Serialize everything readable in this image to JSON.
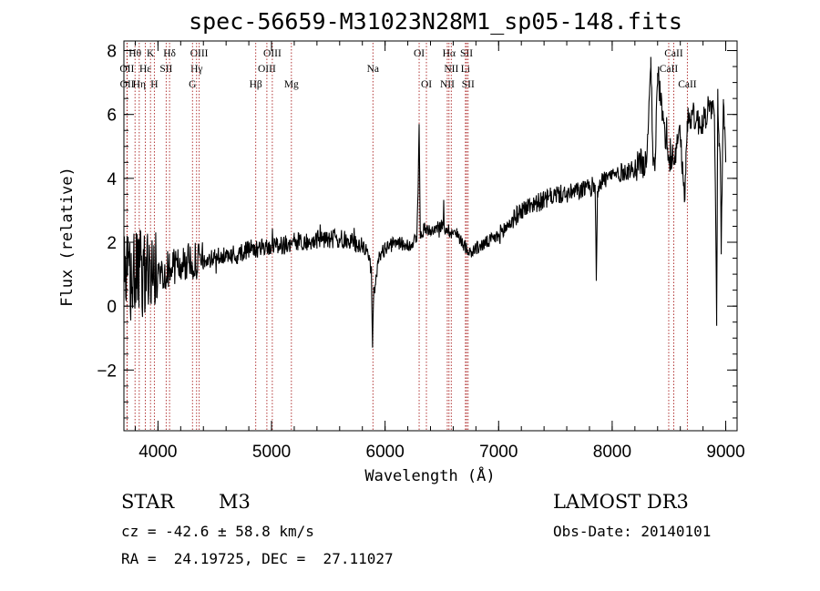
{
  "chart_data": {
    "type": "line",
    "title": "spec-56659-M31023N28M1_sp05-148.fits",
    "xlabel": "Wavelength (Å)",
    "ylabel": "Flux (relative)",
    "xlim": [
      3700,
      9100
    ],
    "ylim": [
      -3.9,
      8.3
    ],
    "x_ticks": [
      4000,
      5000,
      6000,
      7000,
      8000,
      9000
    ],
    "y_ticks": [
      -2,
      0,
      2,
      4,
      6,
      8
    ],
    "x_minor_step": 200,
    "y_minor_step": 0.5,
    "line_color": "#000000",
    "marker_color": "#aa2222",
    "x": [
      3700,
      3800,
      3900,
      4000,
      4100,
      4200,
      4300,
      4400,
      4500,
      4600,
      4700,
      4800,
      4900,
      5000,
      5100,
      5200,
      5300,
      5400,
      5500,
      5600,
      5700,
      5800,
      5860,
      5880,
      5890,
      5900,
      5910,
      5940,
      6000,
      6100,
      6200,
      6280,
      6290,
      6300,
      6310,
      6320,
      6340,
      6400,
      6450,
      6500,
      6550,
      6600,
      6650,
      6700,
      6750,
      6800,
      6900,
      7000,
      7100,
      7200,
      7300,
      7400,
      7500,
      7600,
      7700,
      7800,
      7850,
      7860,
      7870,
      7900,
      8000,
      8100,
      8200,
      8250,
      8300,
      8340,
      8360,
      8380,
      8400,
      8450,
      8500,
      8550,
      8600,
      8640,
      8650,
      8660,
      8700,
      8750,
      8800,
      8850,
      8900,
      8920,
      8930,
      8940,
      8950,
      8960,
      8980,
      9000
    ],
    "series": [
      {
        "name": "spectrum",
        "values": [
          0.8,
          0.9,
          1.1,
          1.0,
          1.2,
          1.3,
          1.4,
          1.4,
          1.5,
          1.6,
          1.6,
          1.8,
          1.8,
          1.9,
          1.9,
          2.0,
          2.0,
          2.1,
          2.1,
          2.1,
          2.0,
          1.9,
          1.6,
          1.0,
          -1.3,
          0.6,
          0.4,
          1.5,
          1.8,
          2.0,
          1.9,
          2.1,
          3.5,
          5.7,
          2.2,
          2.2,
          2.4,
          2.4,
          2.5,
          2.5,
          2.4,
          2.3,
          2.2,
          1.9,
          1.7,
          1.8,
          2.0,
          2.2,
          2.6,
          3.0,
          3.2,
          3.3,
          3.5,
          3.5,
          3.6,
          3.7,
          3.8,
          0.9,
          3.6,
          3.9,
          4.1,
          4.2,
          4.3,
          4.5,
          4.4,
          7.8,
          4.5,
          4.6,
          7.3,
          5.8,
          4.5,
          4.7,
          5.3,
          3.3,
          4.8,
          5.8,
          6.0,
          5.8,
          5.7,
          6.3,
          6.0,
          -0.2,
          6.8,
          5.0,
          4.8,
          1.8,
          6.4,
          4.5
        ]
      }
    ],
    "lines": [
      {
        "name": "Hθ",
        "wavelength": 3798,
        "row": 1
      },
      {
        "name": "OII",
        "wavelength": 3727,
        "row": 2
      },
      {
        "name": "OII",
        "wavelength": 3729,
        "row": 3
      },
      {
        "name": "Hε",
        "wavelength": 3889,
        "row": 2
      },
      {
        "name": "Hη",
        "wavelength": 3835,
        "row": 3
      },
      {
        "name": "K",
        "wavelength": 3934,
        "row": 1
      },
      {
        "name": "SII",
        "wavelength": 4072,
        "row": 2
      },
      {
        "name": "H",
        "wavelength": 3968,
        "row": 3
      },
      {
        "name": "Hδ",
        "wavelength": 4102,
        "row": 1
      },
      {
        "name": "OIII",
        "wavelength": 4363,
        "row": 1
      },
      {
        "name": "Hγ",
        "wavelength": 4340,
        "row": 2
      },
      {
        "name": "G",
        "wavelength": 4304,
        "row": 3
      },
      {
        "name": "Hβ",
        "wavelength": 4861,
        "row": 3
      },
      {
        "name": "OIII",
        "wavelength": 5007,
        "row": 1
      },
      {
        "name": "OIII",
        "wavelength": 4959,
        "row": 2
      },
      {
        "name": "Mg",
        "wavelength": 5175,
        "row": 3
      },
      {
        "name": "Na",
        "wavelength": 5893,
        "row": 2
      },
      {
        "name": "OI",
        "wavelength": 6300,
        "row": 1
      },
      {
        "name": "OI",
        "wavelength": 6364,
        "row": 3
      },
      {
        "name": "Hα",
        "wavelength": 6563,
        "row": 1
      },
      {
        "name": "NII",
        "wavelength": 6583,
        "row": 2
      },
      {
        "name": "NII",
        "wavelength": 6548,
        "row": 3
      },
      {
        "name": "SII",
        "wavelength": 6717,
        "row": 1
      },
      {
        "name": "Li",
        "wavelength": 6708,
        "row": 2
      },
      {
        "name": "SII",
        "wavelength": 6731,
        "row": 3
      },
      {
        "name": "CaII",
        "wavelength": 8542,
        "row": 1
      },
      {
        "name": "CaII",
        "wavelength": 8498,
        "row": 2
      },
      {
        "name": "CaII",
        "wavelength": 8662,
        "row": 3
      }
    ]
  },
  "info": {
    "class": "STAR",
    "subclass": "M3",
    "survey": "LAMOST DR3",
    "cz": "cz = -42.6 ± 58.8 km/s",
    "obs_date": "Obs-Date: 20140101",
    "coords": "RA =  24.19725, DEC =  27.11027"
  }
}
